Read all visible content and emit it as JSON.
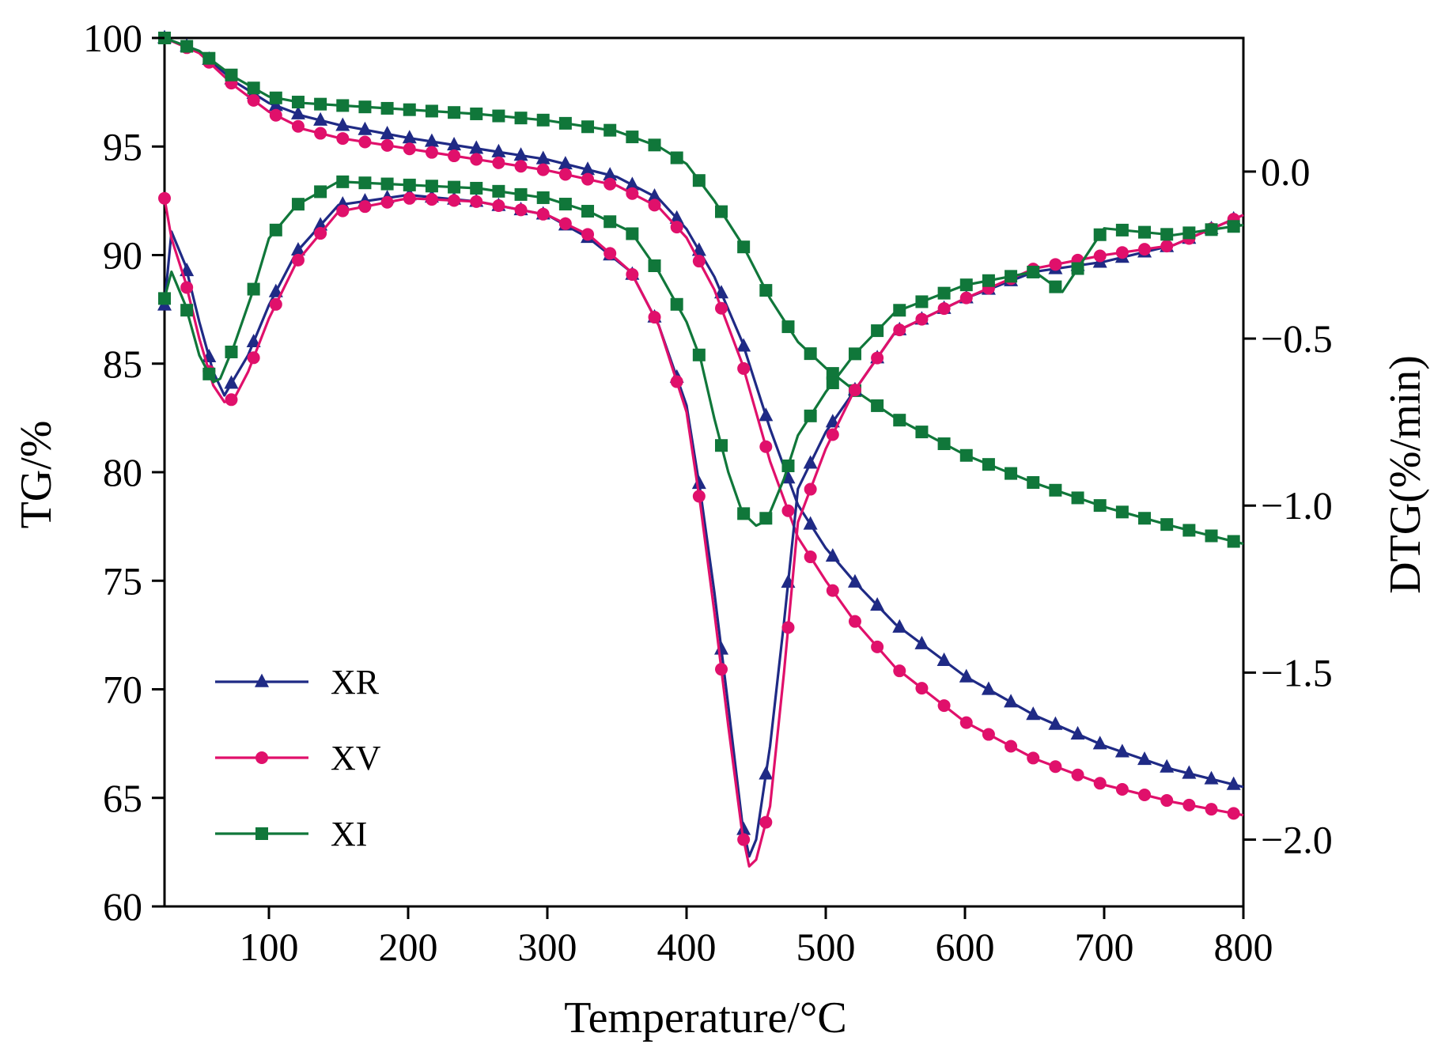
{
  "chart_data": {
    "type": "line",
    "xlabel": "Temperature/°C",
    "ylabel_left": "TG/%",
    "ylabel_right": "DTG(%/min)",
    "xlim": [
      25,
      800
    ],
    "ylim_left": [
      60,
      100
    ],
    "ylim_right": [
      -2.2,
      0.4
    ],
    "x_ticks": [
      100,
      200,
      300,
      400,
      500,
      600,
      700,
      800
    ],
    "y_left_ticks": [
      60,
      65,
      70,
      75,
      80,
      85,
      90,
      95,
      100
    ],
    "y_right_ticks": [
      0.0,
      -0.5,
      -1.0,
      -1.5,
      -2.0
    ],
    "y_right_tick_labels": [
      "0.0",
      "−0.5",
      "−1.0",
      "−1.5",
      "−2.0"
    ],
    "grid": false,
    "legend_position": "bottom-left",
    "series": [
      {
        "name": "XR",
        "color": "#1f2a85",
        "marker": "triangle",
        "axis": "left",
        "curve": "TG",
        "x": [
          25,
          50,
          75,
          100,
          125,
          150,
          200,
          250,
          300,
          350,
          380,
          400,
          420,
          440,
          460,
          480,
          500,
          520,
          550,
          600,
          650,
          700,
          750,
          800
        ],
        "y": [
          100,
          99.4,
          98.0,
          97.0,
          96.4,
          96.0,
          95.4,
          94.9,
          94.4,
          93.6,
          92.6,
          91.2,
          89.0,
          86.0,
          82.0,
          78.5,
          76.5,
          75.0,
          73.0,
          70.6,
          68.8,
          67.4,
          66.3,
          65.5
        ]
      },
      {
        "name": "XV",
        "color": "#e0106b",
        "marker": "circle",
        "axis": "left",
        "curve": "TG",
        "x": [
          25,
          50,
          75,
          100,
          125,
          150,
          200,
          250,
          300,
          350,
          380,
          400,
          420,
          440,
          460,
          480,
          500,
          520,
          550,
          600,
          650,
          700,
          750,
          800
        ],
        "y": [
          100,
          99.3,
          97.8,
          96.6,
          95.8,
          95.4,
          94.9,
          94.4,
          93.9,
          93.2,
          92.2,
          90.8,
          88.4,
          85.0,
          80.5,
          77.0,
          75.0,
          73.2,
          71.0,
          68.5,
          66.8,
          65.6,
          64.8,
          64.2
        ]
      },
      {
        "name": "XI",
        "color": "#10773a",
        "marker": "square",
        "axis": "left",
        "curve": "TG",
        "x": [
          25,
          50,
          75,
          100,
          125,
          150,
          200,
          250,
          300,
          350,
          380,
          400,
          420,
          440,
          460,
          480,
          500,
          520,
          550,
          600,
          650,
          700,
          750,
          800
        ],
        "y": [
          100,
          99.4,
          98.2,
          97.3,
          97.0,
          96.9,
          96.7,
          96.5,
          96.2,
          95.7,
          95.0,
          94.2,
          92.5,
          90.5,
          88.0,
          86.0,
          84.8,
          83.8,
          82.5,
          80.8,
          79.5,
          78.4,
          77.5,
          76.7
        ]
      },
      {
        "name": "XR",
        "color": "#1f2a85",
        "marker": "triangle",
        "axis": "right",
        "curve": "DTG",
        "x": [
          25,
          30,
          40,
          50,
          60,
          68,
          75,
          85,
          100,
          120,
          150,
          200,
          250,
          300,
          330,
          360,
          380,
          400,
          410,
          420,
          430,
          440,
          445,
          450,
          460,
          470,
          480,
          500,
          520,
          550,
          600,
          650,
          700,
          750,
          800
        ],
        "y": [
          -0.4,
          -0.18,
          -0.28,
          -0.45,
          -0.6,
          -0.67,
          -0.62,
          -0.55,
          -0.4,
          -0.24,
          -0.1,
          -0.07,
          -0.09,
          -0.13,
          -0.2,
          -0.3,
          -0.46,
          -0.7,
          -0.96,
          -1.26,
          -1.6,
          -1.95,
          -2.05,
          -2.0,
          -1.72,
          -1.35,
          -0.95,
          -0.78,
          -0.66,
          -0.48,
          -0.38,
          -0.3,
          -0.27,
          -0.22,
          -0.13
        ]
      },
      {
        "name": "XV",
        "color": "#e0106b",
        "marker": "circle",
        "axis": "right",
        "curve": "DTG",
        "x": [
          25,
          30,
          40,
          50,
          60,
          68,
          75,
          85,
          100,
          120,
          150,
          200,
          250,
          300,
          330,
          360,
          380,
          400,
          410,
          420,
          430,
          440,
          445,
          450,
          460,
          470,
          480,
          500,
          520,
          550,
          600,
          650,
          700,
          750,
          800
        ],
        "y": [
          -0.08,
          -0.2,
          -0.33,
          -0.5,
          -0.64,
          -0.69,
          -0.68,
          -0.6,
          -0.44,
          -0.27,
          -0.12,
          -0.08,
          -0.09,
          -0.13,
          -0.19,
          -0.3,
          -0.46,
          -0.72,
          -1.0,
          -1.32,
          -1.66,
          -1.98,
          -2.08,
          -2.06,
          -1.9,
          -1.5,
          -1.05,
          -0.83,
          -0.66,
          -0.48,
          -0.38,
          -0.29,
          -0.25,
          -0.22,
          -0.13
        ]
      },
      {
        "name": "XI",
        "color": "#10773a",
        "marker": "square",
        "axis": "right",
        "curve": "DTG",
        "x": [
          25,
          30,
          40,
          50,
          60,
          65,
          75,
          90,
          100,
          120,
          150,
          200,
          250,
          300,
          330,
          360,
          380,
          400,
          410,
          420,
          430,
          440,
          450,
          455,
          460,
          470,
          480,
          500,
          520,
          550,
          600,
          650,
          670,
          700,
          750,
          800
        ],
        "y": [
          -0.38,
          -0.3,
          -0.4,
          -0.55,
          -0.63,
          -0.62,
          -0.52,
          -0.34,
          -0.2,
          -0.1,
          -0.03,
          -0.04,
          -0.05,
          -0.08,
          -0.12,
          -0.18,
          -0.3,
          -0.45,
          -0.56,
          -0.74,
          -0.9,
          -1.02,
          -1.06,
          -1.05,
          -1.02,
          -0.92,
          -0.79,
          -0.66,
          -0.55,
          -0.42,
          -0.34,
          -0.3,
          -0.36,
          -0.17,
          -0.19,
          -0.16
        ]
      }
    ]
  }
}
